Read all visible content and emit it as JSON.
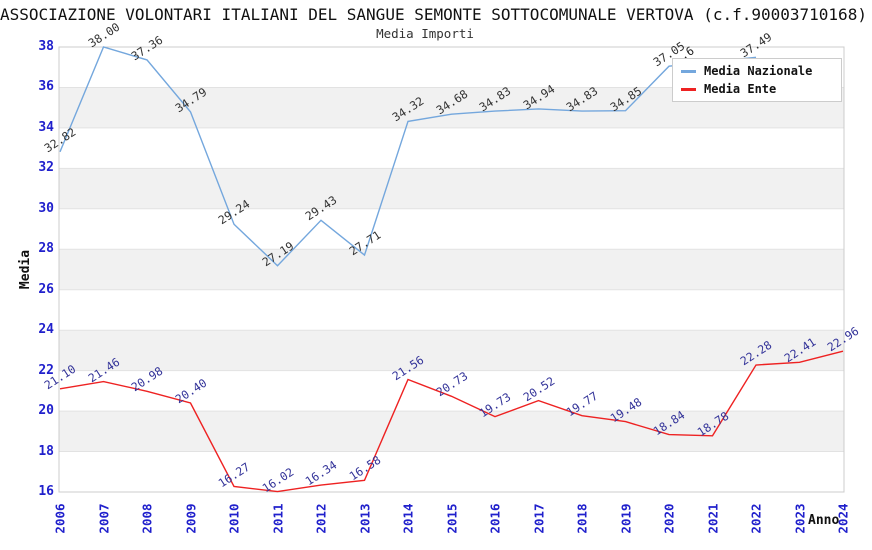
{
  "header": {
    "title": "ASSOCIAZIONE VOLONTARI ITALIANI DEL SANGUE SEMONTE SOTTOCOMUNALE VERTOVA (c.f.90003710168)",
    "subtitle": "Media Importi"
  },
  "axes": {
    "y_title": "Media",
    "x_title": "Anno",
    "y_ticks": [
      38,
      36,
      34,
      32,
      30,
      28,
      26,
      24,
      22,
      20,
      18,
      16
    ],
    "tick_color": "#2020cc"
  },
  "legend": {
    "items": [
      {
        "label": "Media Nazionale",
        "color": "#74a7dd"
      },
      {
        "label": "Media Ente",
        "color": "#ee2222"
      }
    ]
  },
  "chart_data": {
    "type": "line",
    "title": "Media Importi",
    "xlabel": "Anno",
    "ylabel": "Media",
    "ylim": [
      16,
      38
    ],
    "grid": "horizontal-bands",
    "legend_position": "top-right",
    "x": [
      2006,
      2007,
      2008,
      2009,
      2010,
      2011,
      2012,
      2013,
      2014,
      2015,
      2016,
      2017,
      2018,
      2019,
      2020,
      2021,
      2022,
      2023,
      2024
    ],
    "series": [
      {
        "name": "Media Nazionale",
        "color": "#74a7dd",
        "label_color": "#333333",
        "values": [
          32.82,
          38.0,
          37.36,
          34.79,
          29.24,
          27.19,
          29.43,
          27.71,
          34.32,
          34.68,
          34.83,
          34.94,
          34.83,
          34.85,
          37.05,
          null,
          37.49,
          null,
          null
        ]
      },
      {
        "name": "Media Ente",
        "color": "#ee2222",
        "label_color": "#333399",
        "values": [
          21.1,
          21.46,
          20.98,
          20.4,
          16.27,
          16.02,
          16.34,
          16.58,
          21.56,
          20.73,
          19.73,
          20.52,
          19.77,
          19.48,
          18.84,
          18.78,
          22.28,
          22.41,
          22.96
        ]
      }
    ],
    "clipped_label": ".6",
    "band_color": "#f1f1f1",
    "gridline_color": "#e2e2e2",
    "border_color": "#cccccc"
  }
}
